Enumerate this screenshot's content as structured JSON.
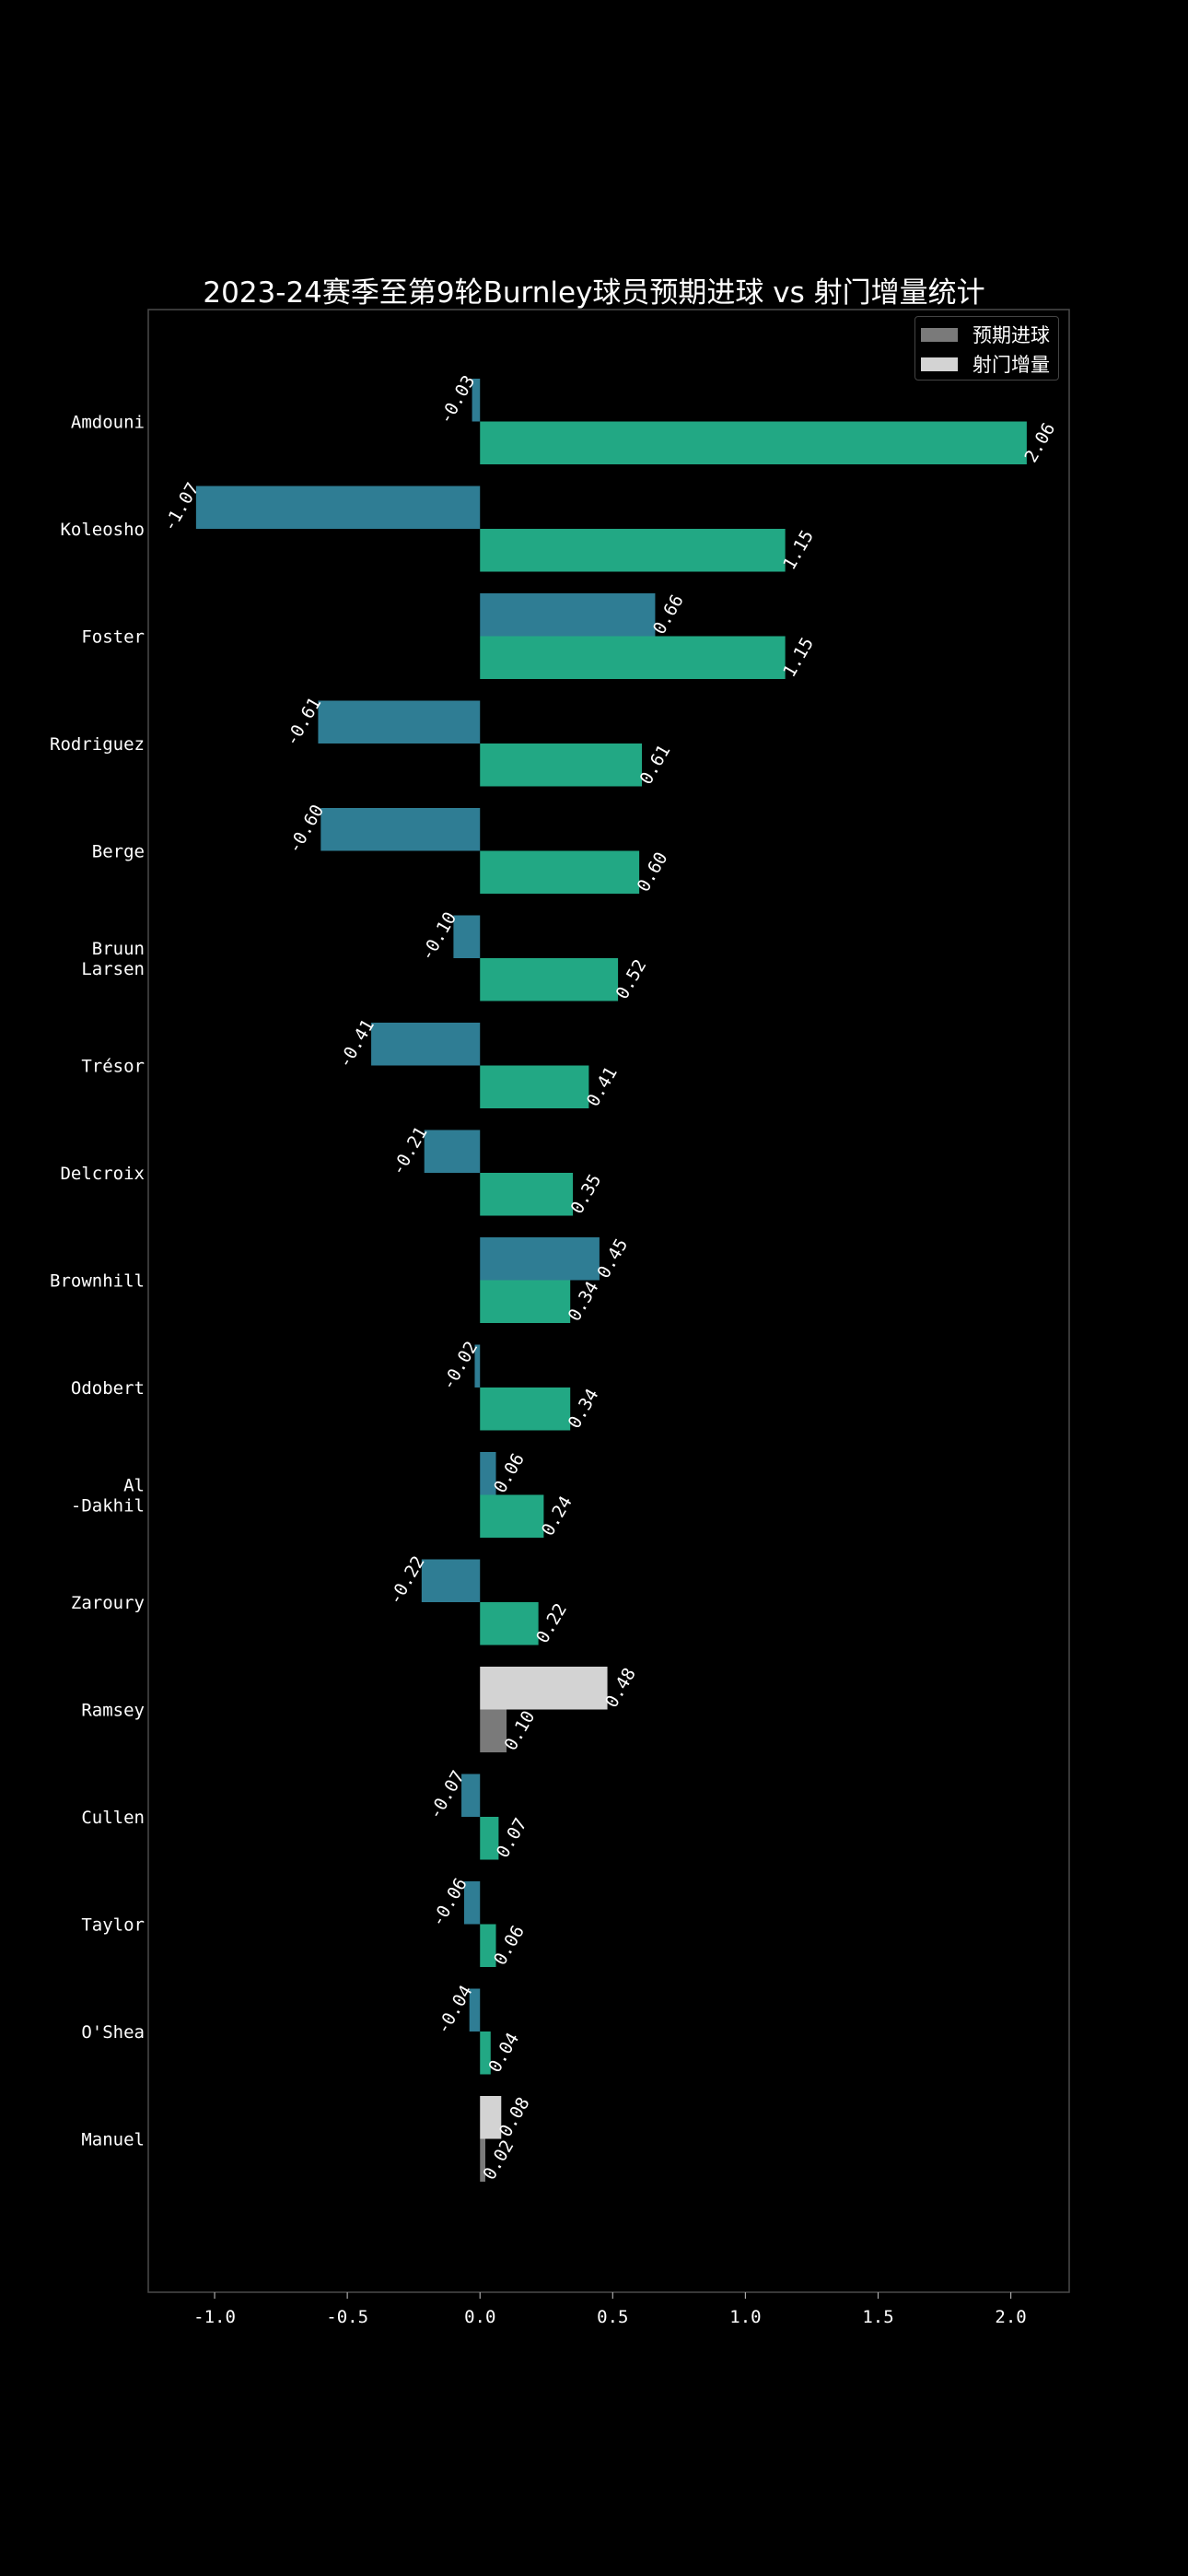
{
  "chart_data": {
    "type": "bar",
    "orientation": "horizontal",
    "title": "2023-24赛季至第9轮Burnley球员预期进球 vs 射门增量统计",
    "xlabel": "",
    "ylabel": "",
    "xlim": [
      -1.25,
      2.22
    ],
    "xticks": [
      "-1.0",
      "-0.5",
      "0.0",
      "0.5",
      "1.0",
      "1.5",
      "2.0"
    ],
    "xtick_values": [
      -1.0,
      -0.5,
      0.0,
      0.5,
      1.0,
      1.5,
      2.0
    ],
    "grid": false,
    "legend_position": "top-right",
    "legend": [
      {
        "label": "预期进球",
        "color": "#7a7a7a"
      },
      {
        "label": "射门增量",
        "color": "#d3d3d3"
      }
    ],
    "colors": {
      "series_a_bar": "#2f7d94",
      "series_b_bar": "#22a884",
      "highlight_a": "#7a7a7a",
      "highlight_b": "#d3d3d3",
      "background": "#000000",
      "axes_border": "#4a4a4a",
      "text": "#ffffff"
    },
    "categories": [
      [
        "Amdouni"
      ],
      [
        "Koleosho"
      ],
      [
        "Foster"
      ],
      [
        "Rodriguez"
      ],
      [
        "Berge"
      ],
      [
        "Bruun",
        "Larsen"
      ],
      [
        "Trésor"
      ],
      [
        "Delcroix"
      ],
      [
        "Brownhill"
      ],
      [
        "Odobert"
      ],
      [
        "Al",
        "-Dakhil"
      ],
      [
        "Zaroury"
      ],
      [
        "Ramsey"
      ],
      [
        "Cullen"
      ],
      [
        "Taylor"
      ],
      [
        "O'Shea"
      ],
      [
        "Manuel"
      ]
    ],
    "highlighted_categories": [
      12,
      16
    ],
    "series": [
      {
        "values": [
          -0.03,
          -1.07,
          0.66,
          -0.61,
          -0.6,
          -0.1,
          -0.41,
          -0.21,
          0.45,
          -0.02,
          0.06,
          -0.22,
          0.48,
          -0.07,
          -0.06,
          -0.04,
          0.08
        ],
        "labels": [
          "-0.03",
          "-1.07",
          "0.66",
          "-0.61",
          "-0.60",
          "-0.10",
          "-0.41",
          "-0.21",
          "0.45",
          "-0.02",
          "0.06",
          "-0.22",
          "0.48",
          "-0.07",
          "-0.06",
          "-0.04",
          "0.08"
        ]
      },
      {
        "values": [
          2.06,
          1.15,
          1.15,
          0.61,
          0.6,
          0.52,
          0.41,
          0.35,
          0.34,
          0.34,
          0.24,
          0.22,
          0.1,
          0.07,
          0.06,
          0.04,
          0.02
        ],
        "labels": [
          "2.06",
          "1.15",
          "1.15",
          "0.61",
          "0.60",
          "0.52",
          "0.41",
          "0.35",
          "0.34",
          "0.34",
          "0.24",
          "0.22",
          "0.10",
          "0.07",
          "0.06",
          "0.04",
          "0.02"
        ]
      }
    ]
  }
}
